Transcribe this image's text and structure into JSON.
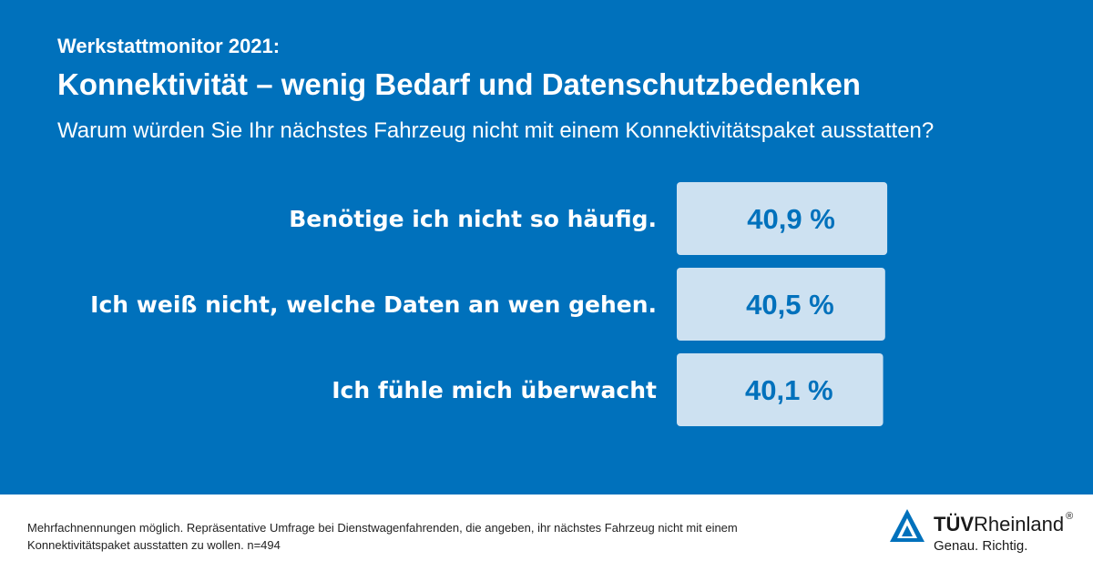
{
  "header": {
    "kicker": "Werkstattmonitor 2021:",
    "headline": "Konnektivität – wenig Bedarf und Datenschutzbedenken",
    "question": "Warum würden Sie Ihr nächstes Fahrzeug nicht mit einem Konnektivitätspaket ausstatten?"
  },
  "chart_data": {
    "type": "bar",
    "orientation": "horizontal",
    "categories": [
      "Benötige ich nicht so häufig.",
      "Ich weiß nicht, welche Daten an wen gehen.",
      "Ich fühle mich überwacht"
    ],
    "values": [
      40.9,
      40.5,
      40.1
    ],
    "value_labels": [
      "40,9 %",
      "40,5 %",
      "40,1 %"
    ],
    "unit": "%",
    "xlim": [
      0,
      100
    ],
    "grid": false,
    "legend": "none"
  },
  "footer": {
    "note": "Mehrfachnennungen möglich. Repräsentative Umfrage bei Dienstwagenfahrenden, die angeben, ihr nächstes Fahrzeug nicht mit einem Konnektivitätspaket ausstatten zu wollen. n=494"
  },
  "logo": {
    "brand_bold": "TÜV",
    "brand_regular": "Rheinland",
    "registered": "®",
    "slogan": "Genau. Richtig."
  },
  "colors": {
    "background": "#0071bc",
    "bar": "#cde1f1",
    "label": "#ffffff",
    "value": "#0071bc"
  }
}
